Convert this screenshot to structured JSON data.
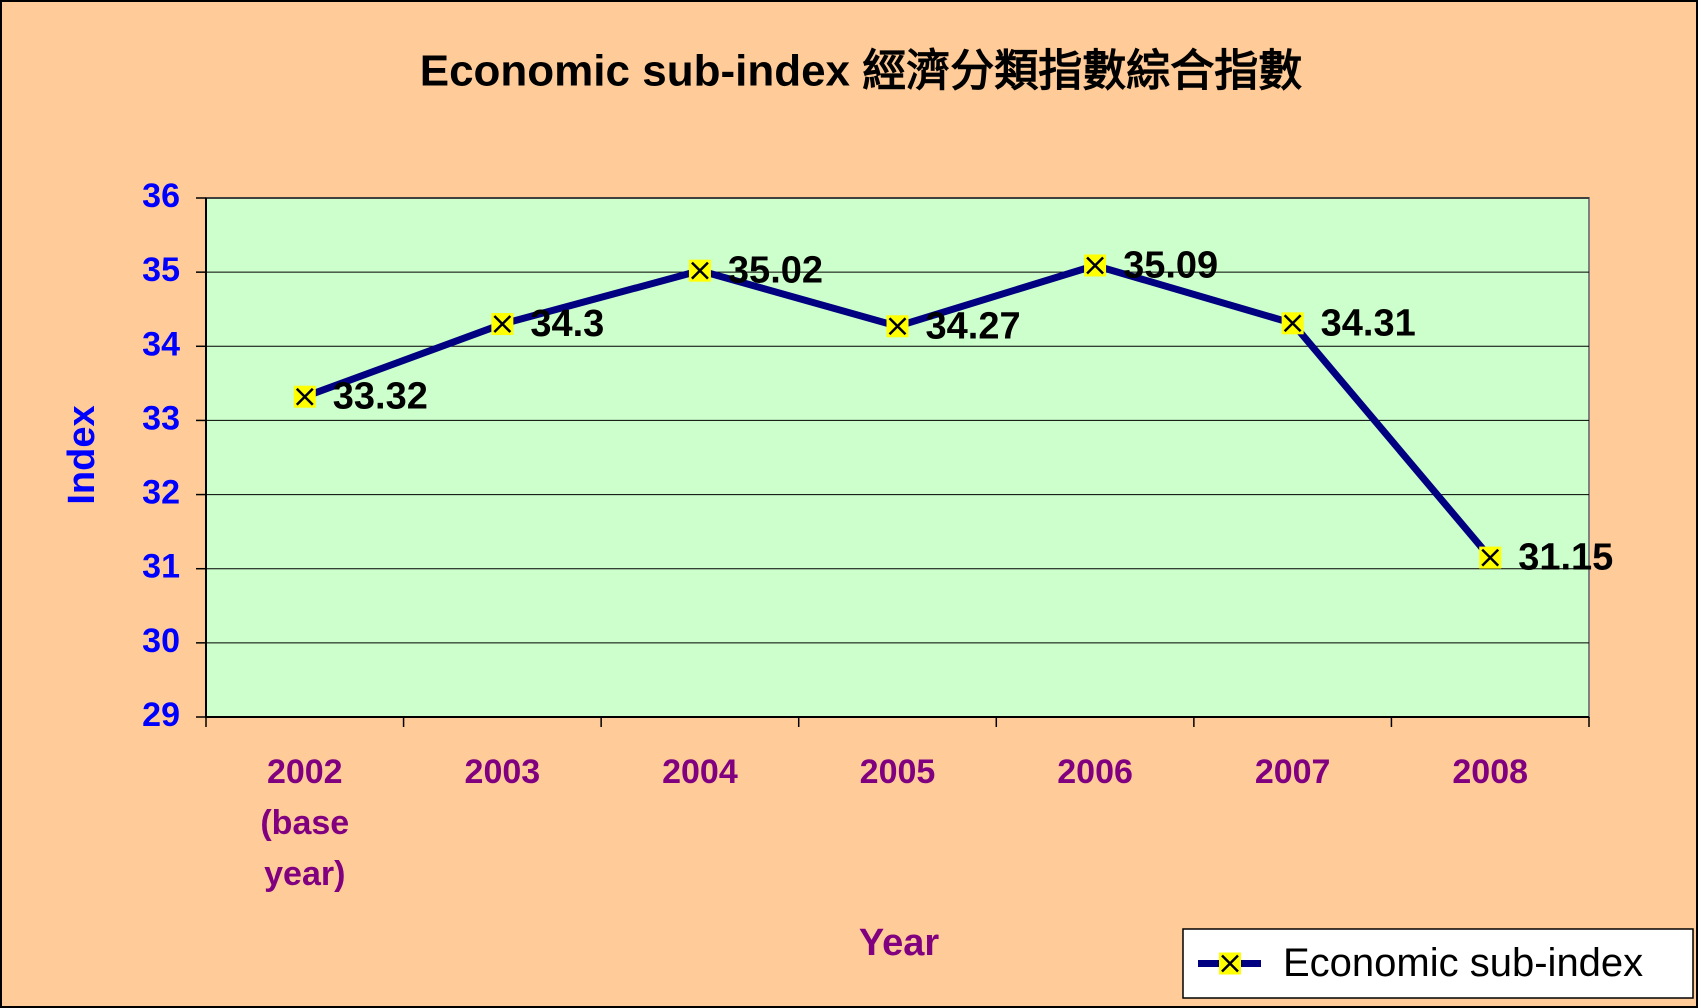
{
  "chart_data": {
    "type": "line",
    "title": "Economic sub-index 經濟分類指數綜合指數",
    "x_label": "Year",
    "y_label": "Index",
    "categories": [
      "2002 (base year)",
      "2003",
      "2004",
      "2005",
      "2006",
      "2007",
      "2008"
    ],
    "series": [
      {
        "name": "Economic sub-index",
        "color": "#000080",
        "marker_color": "#ffff00",
        "values": [
          33.32,
          34.3,
          35.02,
          34.27,
          35.09,
          34.31,
          31.15
        ]
      }
    ],
    "ylim": [
      29,
      36
    ],
    "yticks": [
      29,
      30,
      31,
      32,
      33,
      34,
      35,
      36
    ],
    "grid": true,
    "legend": "bottom-right"
  }
}
